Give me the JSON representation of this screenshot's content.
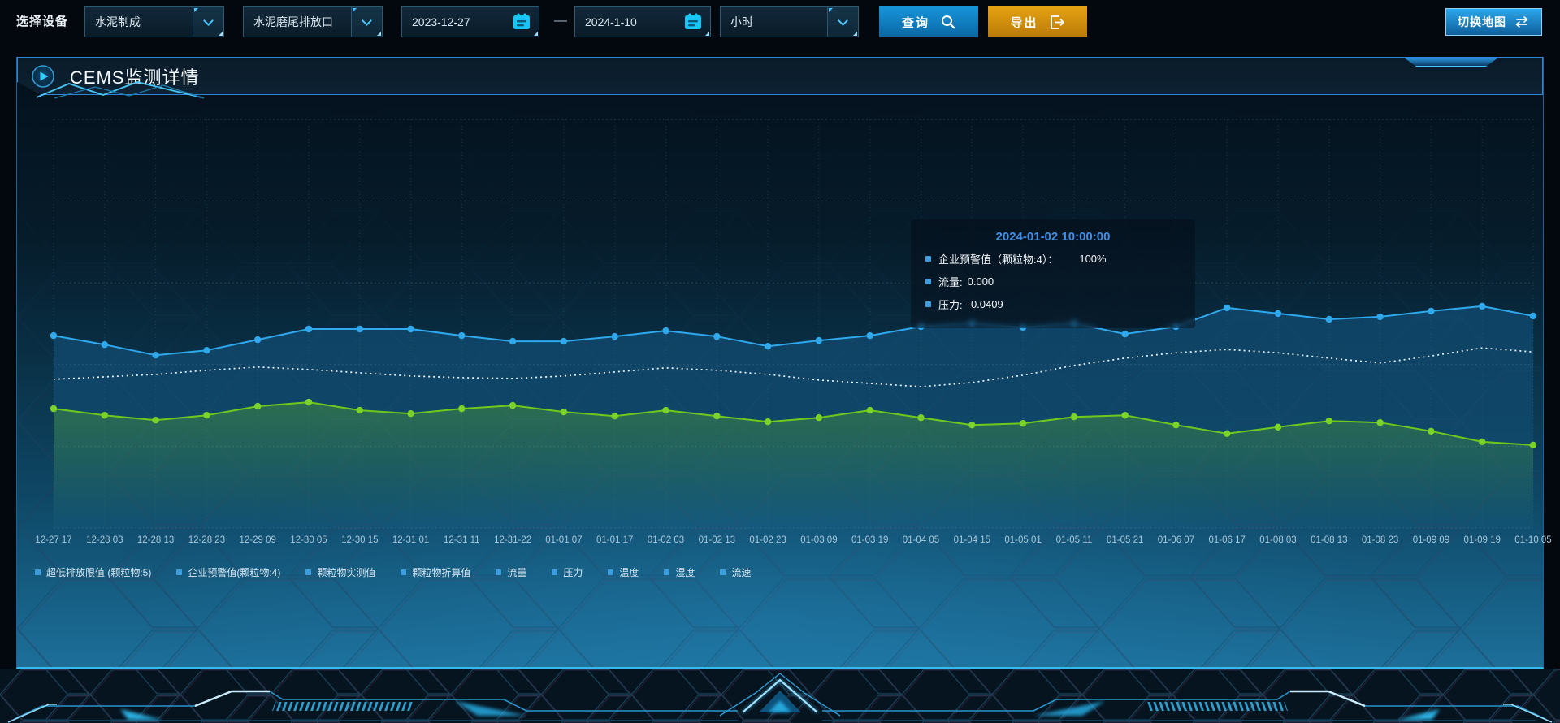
{
  "toolbar": {
    "device_label": "选择设备",
    "device_value": "水泥制成",
    "outlet_value": "水泥磨尾排放口",
    "date_start": "2023-12-27",
    "date_separator": "—",
    "date_end": "2024-1-10",
    "interval_value": "小时",
    "query_label": "查询",
    "export_label": "导出",
    "switch_map_label": "切换地图"
  },
  "panel": {
    "title": "CEMS监测详情"
  },
  "tooltip": {
    "title": "2024-01-02 10:00:00",
    "items": [
      {
        "label": "企业预警值（颗粒物:4）：",
        "value": "100%"
      },
      {
        "label": "流量:",
        "value": "0.000"
      },
      {
        "label": "压力:",
        "value": "-0.0409"
      }
    ]
  },
  "colors": {
    "accent_cyan": "#49c8ff",
    "series_blue": "#2fa8ec",
    "series_white": "#eaf4fa",
    "series_green": "#6fc91d",
    "legend_marker": "#3f9ddd",
    "tooltip_title": "#3f8fe8",
    "button_blue": "#1090d2",
    "export_orange": "#d9940f"
  },
  "chart_data": {
    "type": "line",
    "categories": [
      "12-27 17",
      "12-28 03",
      "12-28 13",
      "12-28 23",
      "12-29 09",
      "12-30 05",
      "12-30 15",
      "12-31 01",
      "12-31 11",
      "12-31-22",
      "01-01 07",
      "01-01 17",
      "01-02 03",
      "01-02 13",
      "01-02 23",
      "01-03 09",
      "01-03 19",
      "01-04 05",
      "01-04 15",
      "01-05 01",
      "01-05 11",
      "01-05 21",
      "01-06 07",
      "01-06 17",
      "01-08 03",
      "01-08 13",
      "01-08 23",
      "01-09 09",
      "01-09 19",
      "01-10 05"
    ],
    "legend": [
      "超低排放限值 (颗粒物:5)",
      "企业预警值(颗粒物:4)",
      "颗粒物实测值",
      "颗粒物折算值",
      "流量",
      "压力",
      "温度",
      "湿度",
      "流速"
    ],
    "series": [
      {
        "name": "企业预警值(颗粒物:4)",
        "color": "#2fa8ec",
        "dot_color": "#2fa8ec",
        "style": "solid",
        "dots": true,
        "area_from": "rgba(31,130,200,0.30)",
        "area_to": "rgba(31,130,200,0.05)",
        "values": [
          47.1,
          44.9,
          42.3,
          43.5,
          46.1,
          48.7,
          48.7,
          48.7,
          47.1,
          45.7,
          45.7,
          46.9,
          48.3,
          46.9,
          44.5,
          45.9,
          47.1,
          49.3,
          50.1,
          49.1,
          50.1,
          47.5,
          49.3,
          53.9,
          52.5,
          51.1,
          51.7,
          53.1,
          54.3,
          51.9
        ]
      },
      {
        "name": "流量",
        "color": "#eaf4fa",
        "style": "dotted",
        "dots": false,
        "values": [
          36.4,
          37.0,
          37.6,
          38.6,
          39.4,
          38.8,
          38.0,
          37.2,
          36.8,
          36.6,
          37.2,
          38.2,
          39.2,
          38.6,
          37.6,
          36.2,
          35.4,
          34.6,
          35.6,
          37.4,
          39.8,
          41.6,
          42.9,
          43.7,
          42.9,
          41.6,
          40.4,
          42.1,
          44.1,
          43.1
        ]
      },
      {
        "name": "压力",
        "color": "#6fc91d",
        "dot_color": "#7bd32a",
        "style": "solid",
        "dots": true,
        "area_from": "rgba(110,200,30,0.30)",
        "area_to": "rgba(110,200,30,0.0)",
        "values": [
          29.2,
          27.6,
          26.4,
          27.6,
          29.8,
          30.8,
          28.8,
          28.0,
          29.2,
          30.0,
          28.4,
          27.4,
          28.8,
          27.4,
          26.0,
          27.0,
          28.8,
          27.0,
          25.2,
          25.6,
          27.2,
          27.6,
          25.2,
          23.1,
          24.7,
          26.2,
          25.8,
          23.7,
          21.1,
          20.3
        ]
      }
    ],
    "xlabel": "",
    "ylabel": "",
    "y_axis_visible": false,
    "ylim": [
      0,
      100
    ],
    "value_scale": "relative height, percent of plot area (no y-axis labels shown in UI)",
    "grid": true,
    "legend_position": "bottom-left"
  }
}
